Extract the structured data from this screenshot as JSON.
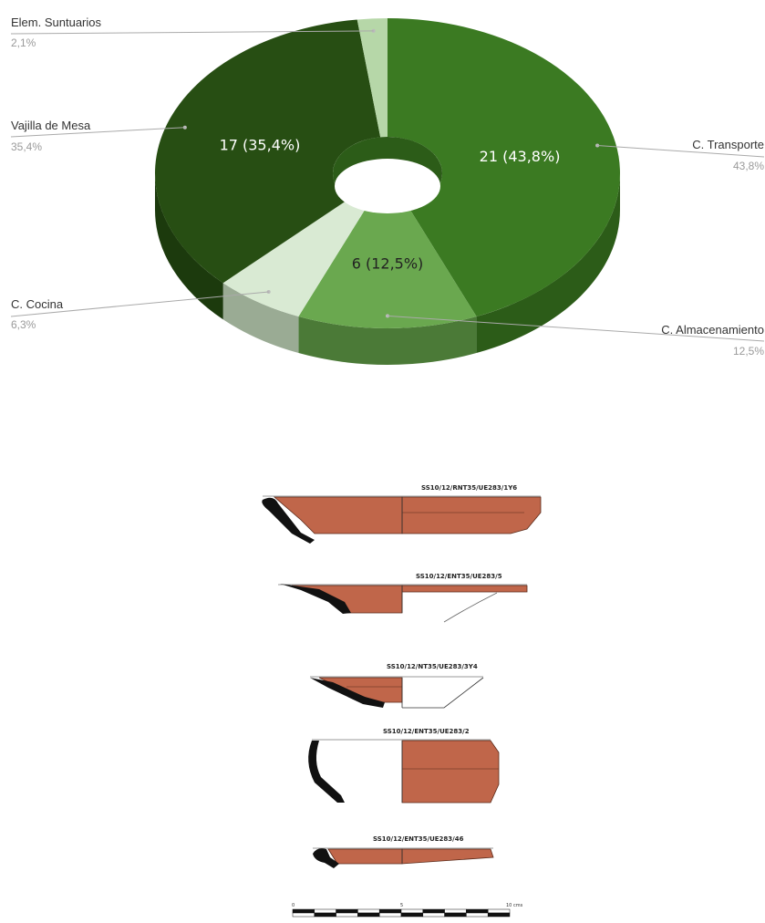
{
  "chart_data": {
    "type": "pie",
    "style": "3d-donut",
    "slices": [
      {
        "name": "C. Transporte",
        "value": 21,
        "percent": "43,8%",
        "inner_label": "21 (43,8%)",
        "color": "#3b7a22",
        "side_color": "#2c5c18",
        "text_color": "#ffffff"
      },
      {
        "name": "C. Almacenamiento",
        "value": 6,
        "percent": "12,5%",
        "inner_label": "6 (12,5%)",
        "color": "#6aa84f",
        "side_color": "#4b7a37",
        "text_color": "#222222"
      },
      {
        "name": "C. Cocina",
        "value": 3,
        "percent": "6,3%",
        "inner_label": "",
        "color": "#d9ead3",
        "side_color": "#9aab94",
        "text_color": "#222222"
      },
      {
        "name": "Vajilla de Mesa",
        "value": 17,
        "percent": "35,4%",
        "inner_label": "17 (35,4%)",
        "color": "#274e13",
        "side_color": "#1c3a0d",
        "text_color": "#ffffff"
      },
      {
        "name": "Elem. Suntuarios",
        "value": 1,
        "percent": "2,1%",
        "inner_label": "",
        "color": "#b6d7a8",
        "side_color": "#8aa87e",
        "text_color": "#222222"
      }
    ],
    "legend_placement": "leader-lines"
  },
  "drawings": [
    {
      "code": "SS10/12/RNT35/UE283/1Y6"
    },
    {
      "code": "SS10/12/ENT35/UE283/5"
    },
    {
      "code": "SS10/12/NT35/UE283/3Y4"
    },
    {
      "code": "SS10/12/ENT35/UE283/2"
    },
    {
      "code": "SS10/12/ENT35/UE283/46"
    }
  ],
  "scale_bar": {
    "labels": [
      "0",
      "5",
      "10 cms"
    ]
  },
  "colors": {
    "sherd": "#c0664a",
    "profile": "#111111"
  }
}
